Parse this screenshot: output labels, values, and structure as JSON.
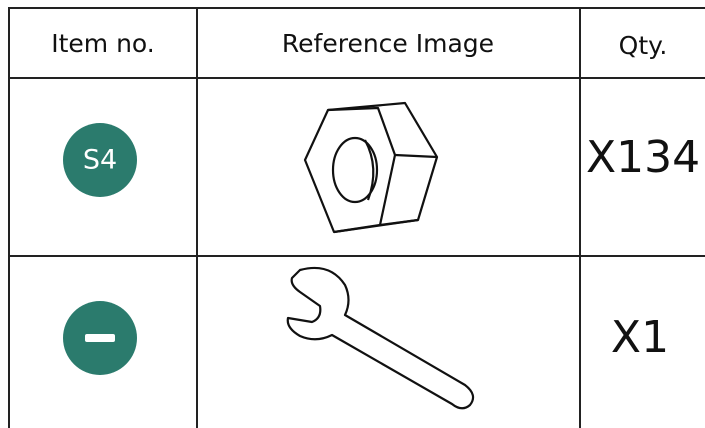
{
  "table": {
    "header": [
      "Item no.",
      "Reference Image",
      "Qty."
    ],
    "rows": [
      [
        "S4",
        "X134"
      ],
      [
        "X1"
      ]
    ]
  }
}
